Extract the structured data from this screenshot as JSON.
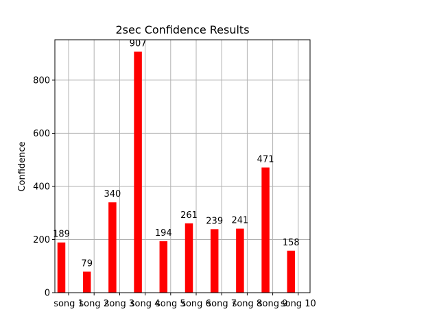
{
  "chart_data": {
    "type": "bar",
    "title": "2sec Confidence Results",
    "xlabel": "",
    "ylabel": "Confidence",
    "categories": [
      "song 1",
      "song 2",
      "song 3",
      "song 4",
      "song 5",
      "song 6",
      "song 7",
      "song 8",
      "song 9",
      "song 10"
    ],
    "values": [
      189,
      79,
      340,
      907,
      194,
      261,
      239,
      241,
      471,
      158
    ],
    "data_labels": [
      "189",
      "79",
      "340",
      "907",
      "194",
      "261",
      "239",
      "241",
      "471",
      "158"
    ],
    "ylim": [
      0,
      952
    ],
    "yticks": [
      0,
      200,
      400,
      600,
      800
    ],
    "grid": true,
    "legend": "none",
    "bar_color": "#ff0000",
    "grid_color": "#b0b0b0"
  }
}
